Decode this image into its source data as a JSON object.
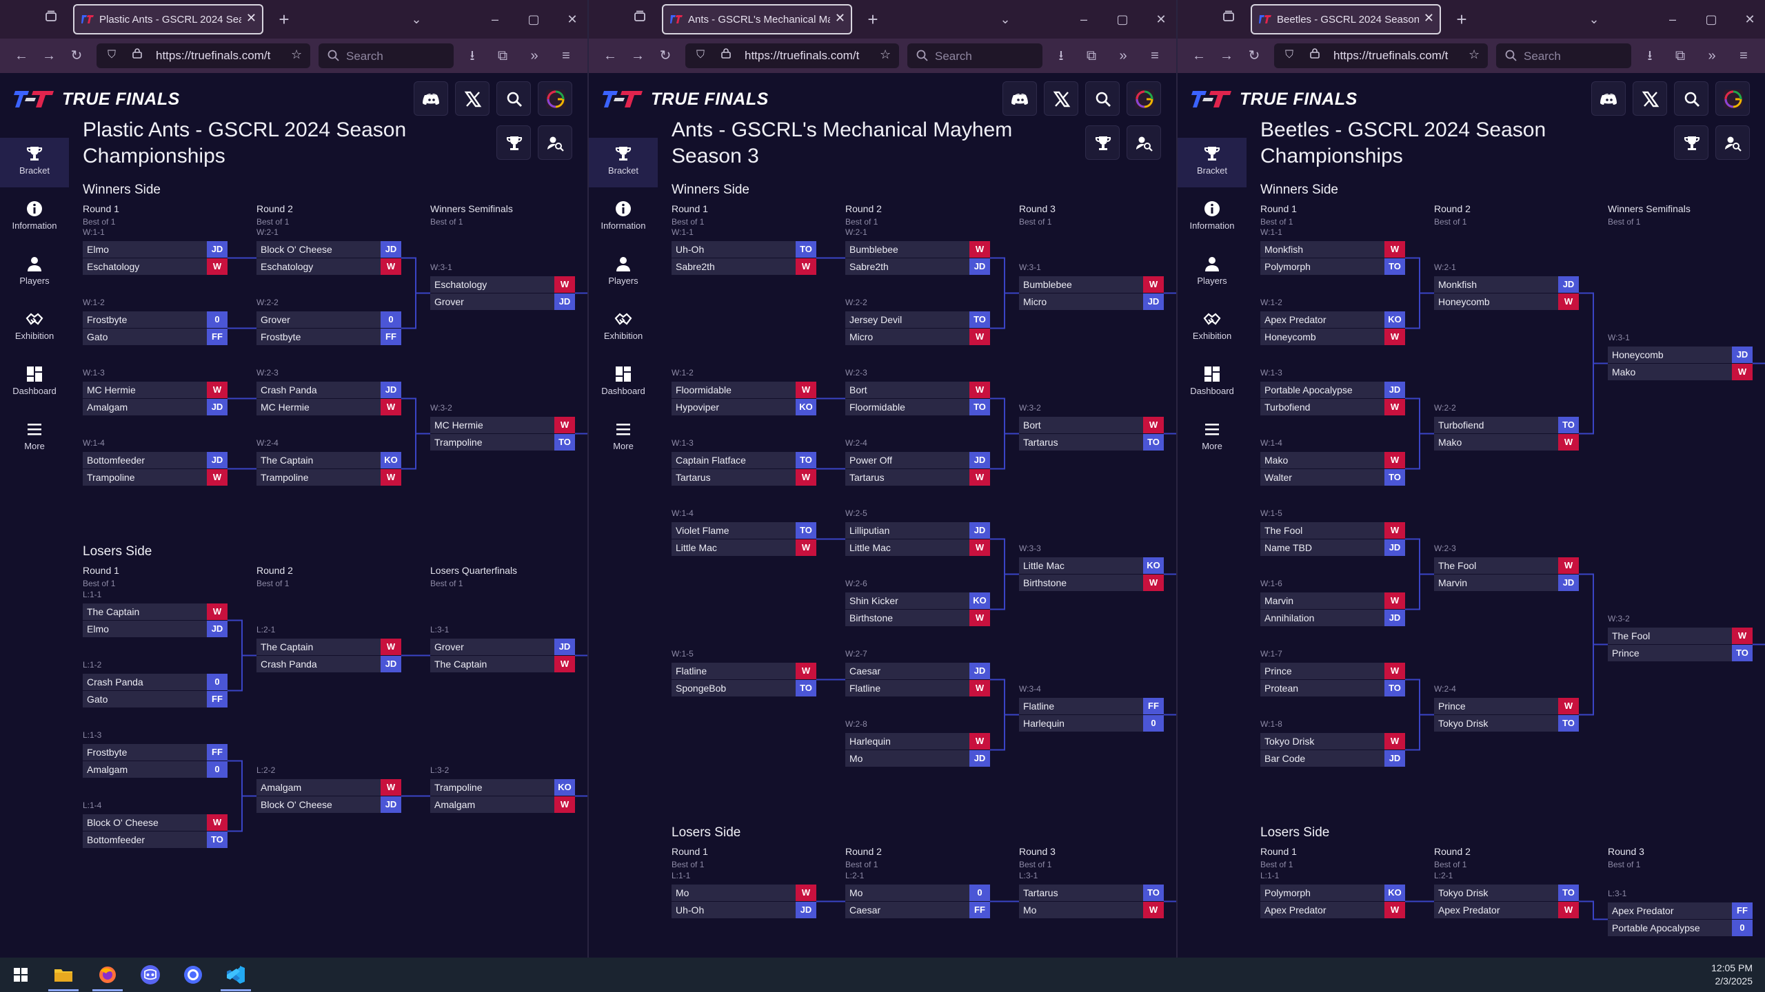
{
  "browser": {
    "url": "https://truefinals.com/t",
    "search_placeholder": "Search"
  },
  "app": {
    "brand": "TRUE FINALS"
  },
  "sidebar": {
    "items": [
      {
        "label": "Bracket",
        "icon": "trophy-icon"
      },
      {
        "label": "Information",
        "icon": "info-icon"
      },
      {
        "label": "Players",
        "icon": "person-icon"
      },
      {
        "label": "Exhibition",
        "icon": "handshake-icon"
      },
      {
        "label": "Dashboard",
        "icon": "dashboard-icon"
      },
      {
        "label": "More",
        "icon": "menu-icon"
      }
    ]
  },
  "taskbar": {
    "time": "12:05 PM",
    "date": "2/3/2025"
  },
  "colors": {
    "win": "#c8113e",
    "loss": "#4b56d6",
    "accent": "#3a44c6",
    "slot": "#2a2845"
  },
  "windows": [
    {
      "tab_title": "Plastic Ants - GSCRL 2024 Season Championships",
      "title": "Plastic Ants - GSCRL 2024 Season Championships",
      "sections": [
        {
          "name": "Winners Side",
          "rounds": [
            {
              "name": "Round 1",
              "best": "Best of 1"
            },
            {
              "name": "Round 2",
              "best": "Best of 1"
            },
            {
              "name": "Winners Semifinals",
              "best": "Best of 1"
            }
          ],
          "matches": [
            {
              "label": "W:1-1",
              "t1": "Elmo",
              "s1": "JD",
              "t2": "Eschatology",
              "s2": "W"
            },
            {
              "label": "W:1-2",
              "t1": "Frostbyte",
              "s1": "0",
              "t2": "Gato",
              "s2": "FF"
            },
            {
              "label": "W:1-3",
              "t1": "MC Hermie",
              "s1": "W",
              "t2": "Amalgam",
              "s2": "JD"
            },
            {
              "label": "W:1-4",
              "t1": "Bottomfeeder",
              "s1": "JD",
              "t2": "Trampoline",
              "s2": "W"
            },
            {
              "label": "W:2-1",
              "t1": "Block O' Cheese",
              "s1": "JD",
              "t2": "Eschatology",
              "s2": "W"
            },
            {
              "label": "W:2-2",
              "t1": "Grover",
              "s1": "0",
              "t2": "Frostbyte",
              "s2": "FF"
            },
            {
              "label": "W:2-3",
              "t1": "Crash Panda",
              "s1": "JD",
              "t2": "MC Hermie",
              "s2": "W"
            },
            {
              "label": "W:2-4",
              "t1": "The Captain",
              "s1": "KO",
              "t2": "Trampoline",
              "s2": "W"
            },
            {
              "label": "W:3-1",
              "t1": "Eschatology",
              "s1": "W",
              "t2": "Grover",
              "s2": "JD"
            },
            {
              "label": "W:3-2",
              "t1": "MC Hermie",
              "s1": "W",
              "t2": "Trampoline",
              "s2": "TO"
            }
          ]
        },
        {
          "name": "Losers Side",
          "rounds": [
            {
              "name": "Round 1",
              "best": "Best of 1"
            },
            {
              "name": "Round 2",
              "best": "Best of 1"
            },
            {
              "name": "Losers Quarterfinals",
              "best": "Best of 1"
            }
          ],
          "matches": [
            {
              "label": "L:1-1",
              "t1": "The Captain",
              "s1": "W",
              "t2": "Elmo",
              "s2": "JD"
            },
            {
              "label": "L:1-2",
              "t1": "Crash Panda",
              "s1": "0",
              "t2": "Gato",
              "s2": "FF"
            },
            {
              "label": "L:1-3",
              "t1": "Frostbyte",
              "s1": "FF",
              "t2": "Amalgam",
              "s2": "0"
            },
            {
              "label": "L:1-4",
              "t1": "Block O' Cheese",
              "s1": "W",
              "t2": "Bottomfeeder",
              "s2": "TO"
            },
            {
              "label": "L:2-1",
              "t1": "The Captain",
              "s1": "W",
              "t2": "Crash Panda",
              "s2": "JD"
            },
            {
              "label": "L:2-2",
              "t1": "Amalgam",
              "s1": "W",
              "t2": "Block O' Cheese",
              "s2": "JD"
            },
            {
              "label": "L:3-1",
              "t1": "Grover",
              "s1": "JD",
              "t2": "The Captain",
              "s2": "W"
            },
            {
              "label": "L:3-2",
              "t1": "Trampoline",
              "s1": "KO",
              "t2": "Amalgam",
              "s2": "W"
            }
          ]
        }
      ]
    },
    {
      "tab_title": "Ants - GSCRL's Mechanical Mayhem Season 3",
      "title": "Ants - GSCRL's Mechanical Mayhem Season 3",
      "sections": [
        {
          "name": "Winners Side",
          "rounds": [
            {
              "name": "Round 1",
              "best": "Best of 1"
            },
            {
              "name": "Round 2",
              "best": "Best of 1"
            },
            {
              "name": "Round 3",
              "best": "Best of 1"
            }
          ],
          "matches": [
            {
              "label": "W:1-1",
              "t1": "Uh-Oh",
              "s1": "TO",
              "t2": "Sabre2th",
              "s2": "W"
            },
            {
              "label": "W:1-2",
              "t1": "Floormidable",
              "s1": "W",
              "t2": "Hypoviper",
              "s2": "KO"
            },
            {
              "label": "W:1-3",
              "t1": "Captain Flatface",
              "s1": "TO",
              "t2": "Tartarus",
              "s2": "W"
            },
            {
              "label": "W:1-4",
              "t1": "Violet Flame",
              "s1": "TO",
              "t2": "Little Mac",
              "s2": "W"
            },
            {
              "label": "W:1-5",
              "t1": "Flatline",
              "s1": "W",
              "t2": "SpongeBob",
              "s2": "TO"
            },
            {
              "label": "W:2-1",
              "t1": "Bumblebee",
              "s1": "W",
              "t2": "Sabre2th",
              "s2": "JD"
            },
            {
              "label": "W:2-2",
              "t1": "Jersey Devil",
              "s1": "TO",
              "t2": "Micro",
              "s2": "W"
            },
            {
              "label": "W:2-3",
              "t1": "Bort",
              "s1": "W",
              "t2": "Floormidable",
              "s2": "TO"
            },
            {
              "label": "W:2-4",
              "t1": "Power Off",
              "s1": "JD",
              "t2": "Tartarus",
              "s2": "W"
            },
            {
              "label": "W:2-5",
              "t1": "Lilliputian",
              "s1": "JD",
              "t2": "Little Mac",
              "s2": "W"
            },
            {
              "label": "W:2-6",
              "t1": "Shin Kicker",
              "s1": "KO",
              "t2": "Birthstone",
              "s2": "W"
            },
            {
              "label": "W:2-7",
              "t1": "Caesar",
              "s1": "JD",
              "t2": "Flatline",
              "s2": "W"
            },
            {
              "label": "W:2-8",
              "t1": "Harlequin",
              "s1": "W",
              "t2": "Mo",
              "s2": "JD"
            },
            {
              "label": "W:3-1",
              "t1": "Bumblebee",
              "s1": "W",
              "t2": "Micro",
              "s2": "JD"
            },
            {
              "label": "W:3-2",
              "t1": "Bort",
              "s1": "W",
              "t2": "Tartarus",
              "s2": "TO"
            },
            {
              "label": "W:3-3",
              "t1": "Little Mac",
              "s1": "KO",
              "t2": "Birthstone",
              "s2": "W"
            },
            {
              "label": "W:3-4",
              "t1": "Flatline",
              "s1": "FF",
              "t2": "Harlequin",
              "s2": "0"
            }
          ]
        },
        {
          "name": "Losers Side",
          "rounds": [
            {
              "name": "Round 1",
              "best": "Best of 1"
            },
            {
              "name": "Round 2",
              "best": "Best of 1"
            },
            {
              "name": "Round 3",
              "best": "Best of 1"
            }
          ],
          "matches": [
            {
              "label": "L:1-1",
              "t1": "Mo",
              "s1": "W",
              "t2": "Uh-Oh",
              "s2": "JD"
            },
            {
              "label": "L:2-1",
              "t1": "Mo",
              "s1": "0",
              "t2": "Caesar",
              "s2": "FF"
            },
            {
              "label": "L:3-1",
              "t1": "Tartarus",
              "s1": "TO",
              "t2": "Mo",
              "s2": "W"
            }
          ]
        }
      ]
    },
    {
      "tab_title": "Beetles - GSCRL 2024 Season Championships",
      "title": "Beetles - GSCRL 2024 Season Championships",
      "sections": [
        {
          "name": "Winners Side",
          "rounds": [
            {
              "name": "Round 1",
              "best": "Best of 1"
            },
            {
              "name": "Round 2",
              "best": "Best of 1"
            },
            {
              "name": "Winners Semifinals",
              "best": "Best of 1"
            }
          ],
          "matches": [
            {
              "label": "W:1-1",
              "t1": "Monkfish",
              "s1": "W",
              "t2": "Polymorph",
              "s2": "TO"
            },
            {
              "label": "W:1-2",
              "t1": "Apex Predator",
              "s1": "KO",
              "t2": "Honeycomb",
              "s2": "W"
            },
            {
              "label": "W:1-3",
              "t1": "Portable Apocalypse",
              "s1": "JD",
              "t2": "Turbofiend",
              "s2": "W"
            },
            {
              "label": "W:1-4",
              "t1": "Mako",
              "s1": "W",
              "t2": "Walter",
              "s2": "TO"
            },
            {
              "label": "W:1-5",
              "t1": "The Fool",
              "s1": "W",
              "t2": "Name TBD",
              "s2": "JD"
            },
            {
              "label": "W:1-6",
              "t1": "Marvin",
              "s1": "W",
              "t2": "Annihilation",
              "s2": "JD"
            },
            {
              "label": "W:1-7",
              "t1": "Prince",
              "s1": "W",
              "t2": "Protean",
              "s2": "TO"
            },
            {
              "label": "W:1-8",
              "t1": "Tokyo Drisk",
              "s1": "W",
              "t2": "Bar Code",
              "s2": "JD"
            },
            {
              "label": "W:2-1",
              "t1": "Monkfish",
              "s1": "JD",
              "t2": "Honeycomb",
              "s2": "W"
            },
            {
              "label": "W:2-2",
              "t1": "Turbofiend",
              "s1": "TO",
              "t2": "Mako",
              "s2": "W"
            },
            {
              "label": "W:2-3",
              "t1": "The Fool",
              "s1": "W",
              "t2": "Marvin",
              "s2": "JD"
            },
            {
              "label": "W:2-4",
              "t1": "Prince",
              "s1": "W",
              "t2": "Tokyo Drisk",
              "s2": "TO"
            },
            {
              "label": "W:3-1",
              "t1": "Honeycomb",
              "s1": "JD",
              "t2": "Mako",
              "s2": "W"
            },
            {
              "label": "W:3-2",
              "t1": "The Fool",
              "s1": "W",
              "t2": "Prince",
              "s2": "TO"
            }
          ]
        },
        {
          "name": "Losers Side",
          "rounds": [
            {
              "name": "Round 1",
              "best": "Best of 1"
            },
            {
              "name": "Round 2",
              "best": "Best of 1"
            },
            {
              "name": "Round 3",
              "best": "Best of 1"
            }
          ],
          "matches": [
            {
              "label": "L:1-1",
              "t1": "Polymorph",
              "s1": "KO",
              "t2": "Apex Predator",
              "s2": "W"
            },
            {
              "label": "L:2-1",
              "t1": "Tokyo Drisk",
              "s1": "TO",
              "t2": "Apex Predator",
              "s2": "W"
            },
            {
              "label": "L:3-1",
              "t1": "Apex Predator",
              "s1": "FF",
              "t2": "Portable Apocalypse",
              "s2": "0"
            }
          ]
        }
      ]
    }
  ]
}
